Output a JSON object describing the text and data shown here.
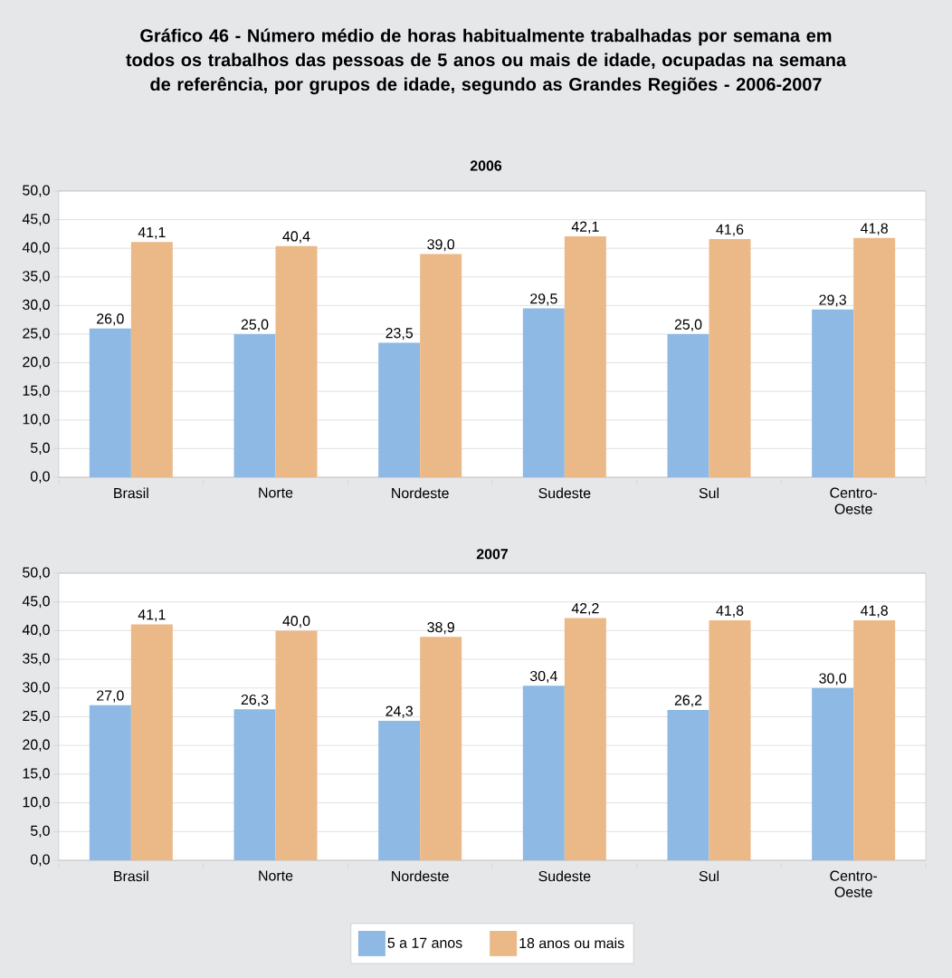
{
  "chart_data": [
    {
      "type": "bar",
      "title": "Gráfico 46 - Número médio de horas habitualmente trabalhadas por semana em todos os trabalhos das pessoas de 5 anos ou mais de idade, ocupadas na semana de referência, por grupos de idade, segundo as Grandes Regiões - 2006-2007",
      "subtitle": "2006",
      "categories": [
        "Brasil",
        "Norte",
        "Nordeste",
        "Sudeste",
        "Sul",
        "Centro-Oeste"
      ],
      "series": [
        {
          "color": "#8db9e4",
          "values": [
            26.0,
            25.0,
            23.5,
            29.5,
            25.0,
            29.3
          ],
          "value_labels": [
            "26,0",
            "25,0",
            "23,5",
            "29,5",
            "25,0",
            "29,3"
          ]
        },
        {
          "color": "#ebb987",
          "values": [
            41.1,
            40.4,
            39.0,
            42.1,
            41.6,
            41.8
          ],
          "value_labels": [
            "41,1",
            "40,4",
            "39,0",
            "42,1",
            "41,6",
            "41,8"
          ]
        }
      ],
      "ylim": [
        0,
        50
      ],
      "yticks": [
        {
          "value": 0,
          "label": "0,0"
        },
        {
          "value": 5,
          "label": "5,0"
        },
        {
          "value": 10,
          "label": "10,0"
        },
        {
          "value": 15,
          "label": "15,0"
        },
        {
          "value": 20,
          "label": "20,0"
        },
        {
          "value": 25,
          "label": "25,0"
        },
        {
          "value": 30,
          "label": "30,0"
        },
        {
          "value": 35,
          "label": "35,0"
        },
        {
          "value": 40,
          "label": "40,0"
        },
        {
          "value": 45,
          "label": "45,0"
        },
        {
          "value": 50,
          "label": "50,0"
        }
      ],
      "grid": "y",
      "legend": false
    },
    {
      "type": "bar",
      "title": "2007",
      "categories": [
        "Brasil",
        "Norte",
        "Nordeste",
        "Sudeste",
        "Sul",
        "Centro-Oeste"
      ],
      "series": [
        {
          "name": "5 a 17 anos",
          "color": "#8db9e4",
          "values": [
            27.0,
            26.3,
            24.3,
            30.4,
            26.2,
            30.0
          ],
          "value_labels": [
            "27,0",
            "26,3",
            "24,3",
            "30,4",
            "26,2",
            "30,0"
          ]
        },
        {
          "name": "18 anos ou mais",
          "color": "#ebb987",
          "values": [
            41.1,
            40.0,
            38.9,
            42.2,
            41.8,
            41.8
          ],
          "value_labels": [
            "41,1",
            "40,0",
            "38,9",
            "42,2",
            "41,8",
            "41,8"
          ]
        }
      ],
      "ylim": [
        0,
        50
      ],
      "yticks": [
        {
          "value": 0,
          "label": "0,0"
        },
        {
          "value": 5,
          "label": "5,0"
        },
        {
          "value": 10,
          "label": "10,0"
        },
        {
          "value": 15,
          "label": "15,0"
        },
        {
          "value": 20,
          "label": "20,0"
        },
        {
          "value": 25,
          "label": "25,0"
        },
        {
          "value": 30,
          "label": "30,0"
        },
        {
          "value": 35,
          "label": "35,0"
        },
        {
          "value": 40,
          "label": "40,0"
        },
        {
          "value": 45,
          "label": "45,0"
        },
        {
          "value": 50,
          "label": "50,0"
        }
      ],
      "grid": "y",
      "legend": "bottom"
    }
  ]
}
